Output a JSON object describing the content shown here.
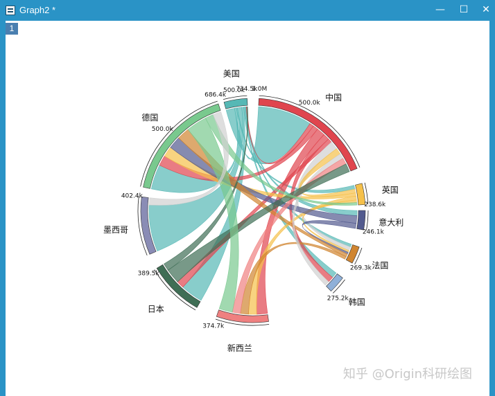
{
  "window": {
    "title": "Graph2 *",
    "layer_label": "1",
    "minimize_label": "—",
    "maximize_label": "☐",
    "close_label": "✕",
    "watermark": "知乎 @Origin科研绘图"
  },
  "chart_data": {
    "type": "chord",
    "nodes": [
      {
        "name": "中国",
        "color": "#e0454e",
        "start_label": "1.0M",
        "mid_label": "500.0k"
      },
      {
        "name": "英国",
        "color": "#f5c04a",
        "end_label": "238.6k"
      },
      {
        "name": "意大利",
        "color": "#525a8e",
        "end_label": "246.1k"
      },
      {
        "name": "法国",
        "color": "#d08530",
        "end_label": "269.3k"
      },
      {
        "name": "韩国",
        "color": "#8fb0d8",
        "end_label": "275.2k"
      },
      {
        "name": "新西兰",
        "color": "#ef8080",
        "end_label": "374.7k"
      },
      {
        "name": "日本",
        "color": "#3f6e55",
        "end_label": "389.5k"
      },
      {
        "name": "墨西哥",
        "color": "#8a8cb5",
        "end_label": "402.4k"
      },
      {
        "name": "德国",
        "color": "#79c98e",
        "end_label": "686.4k",
        "mid_label": "500.0k"
      },
      {
        "name": "美国",
        "color": "#56b8b5",
        "end_label": "734.5k",
        "mid_label": "500.0k"
      }
    ],
    "flows": [
      {
        "from": "美国",
        "to": "中国",
        "color": "#56b8b5",
        "value": 260
      },
      {
        "from": "美国",
        "to": "德国",
        "color": "#56b8b5",
        "value": 60
      },
      {
        "from": "美国",
        "to": "英国",
        "color": "#56b8b5",
        "value": 30
      },
      {
        "from": "美国",
        "to": "墨西哥",
        "color": "#56b8b5",
        "value": 130
      },
      {
        "from": "美国",
        "to": "日本",
        "color": "#56b8b5",
        "value": 60
      },
      {
        "from": "美国",
        "to": "韩国",
        "color": "#56b8b5",
        "value": 30
      },
      {
        "from": "美国",
        "to": "法国",
        "color": "#56b8b5",
        "value": 30
      },
      {
        "from": "美国",
        "to": "意大利",
        "color": "#56b8b5",
        "value": 20
      },
      {
        "from": "中国",
        "to": "美国",
        "color": "#e0454e",
        "value": 20
      },
      {
        "from": "中国",
        "to": "德国",
        "color": "#e0454e",
        "value": 25
      },
      {
        "from": "中国",
        "to": "新西兰",
        "color": "#e0454e",
        "value": 40
      },
      {
        "from": "中国",
        "to": "韩国",
        "color": "#e0454e",
        "value": 30
      },
      {
        "from": "中国",
        "to": "日本",
        "color": "#e0454e",
        "value": 20
      },
      {
        "from": "中国",
        "to": "法国",
        "color": "#d0d0d0",
        "value": 40
      },
      {
        "from": "英国",
        "to": "中国",
        "color": "#f5c04a",
        "value": 30
      },
      {
        "from": "英国",
        "to": "德国",
        "color": "#f5c04a",
        "value": 25
      },
      {
        "from": "英国",
        "to": "新西兰",
        "color": "#f5c04a",
        "value": 30
      },
      {
        "from": "英国",
        "to": "法国",
        "color": "#f5c04a",
        "value": 20
      },
      {
        "from": "意大利",
        "to": "德国",
        "color": "#525a8e",
        "value": 30
      },
      {
        "from": "意大利",
        "to": "法国",
        "color": "#525a8e",
        "value": 20
      },
      {
        "from": "法国",
        "to": "德国",
        "color": "#d08530",
        "value": 30
      },
      {
        "from": "法国",
        "to": "新西兰",
        "color": "#d08530",
        "value": 30
      },
      {
        "from": "韩国",
        "to": "中国",
        "color": "#d0d0d0",
        "value": 25
      },
      {
        "from": "新西兰",
        "to": "中国",
        "color": "#ef8080",
        "value": 30
      },
      {
        "from": "日本",
        "to": "中国",
        "color": "#3f6e55",
        "value": 40
      },
      {
        "from": "日本",
        "to": "美国",
        "color": "#3f6e55",
        "value": 20
      },
      {
        "from": "德国",
        "to": "新西兰",
        "color": "#79c98e",
        "value": 50
      },
      {
        "from": "德国",
        "to": "英国",
        "color": "#79c98e",
        "value": 20
      },
      {
        "from": "墨西哥",
        "to": "德国",
        "color": "#d0d0d0",
        "value": 20
      }
    ]
  }
}
